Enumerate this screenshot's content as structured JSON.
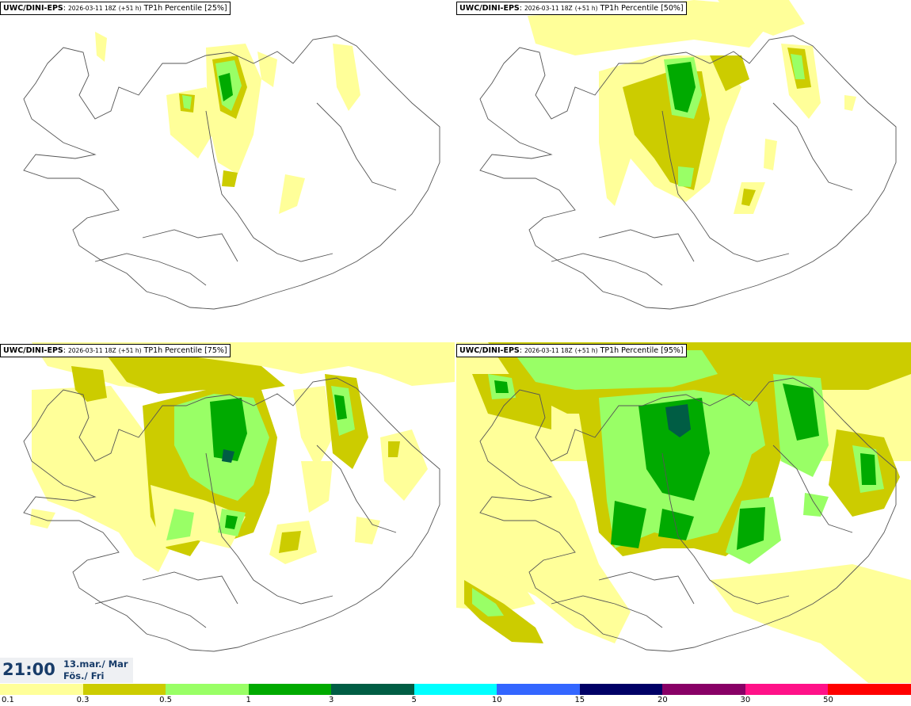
{
  "panels": [
    {
      "model": "UWC/DINI-EPS",
      "run": "2026-03-11 18Z",
      "lead": "(+51 h)",
      "variable": "TP1h Percentile",
      "percentile": "[25%]"
    },
    {
      "model": "UWC/DINI-EPS",
      "run": "2026-03-11 18Z",
      "lead": "(+51 h)",
      "variable": "TP1h Percentile",
      "percentile": "[50%]"
    },
    {
      "model": "UWC/DINI-EPS",
      "run": "2026-03-11 18Z",
      "lead": "(+51 h)",
      "variable": "TP1h Percentile",
      "percentile": "[75%]"
    },
    {
      "model": "UWC/DINI-EPS",
      "run": "2026-03-11 18Z",
      "lead": "(+51 h)",
      "variable": "TP1h Percentile",
      "percentile": "[95%]"
    }
  ],
  "valid_time": {
    "time": "21:00",
    "date_line1": "13.mar./ Mar",
    "date_line2": "Fös./ Fri"
  },
  "colorbar": {
    "labels": [
      "0.1",
      "0.3",
      "0.5",
      "1",
      "3",
      "5",
      "10",
      "15",
      "20",
      "30",
      "50"
    ],
    "colors": [
      "#ffff99",
      "#cccc00",
      "#99ff66",
      "#00aa00",
      "#005d44",
      "#00ffff",
      "#3366ff",
      "#000066",
      "#880066",
      "#ff1188",
      "#ff0000"
    ]
  }
}
